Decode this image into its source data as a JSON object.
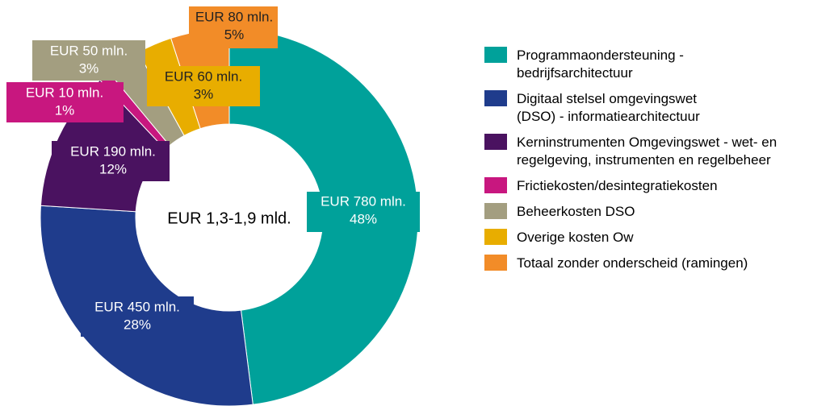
{
  "chart_data": {
    "type": "donut",
    "center_label": "EUR 1,3-1,9 mld.",
    "categories": [
      "Programmaondersteuning -\nbedrijfsarchitectuur",
      "Digitaal stelsel omgevingswet\n(DSO) - informatiearchitectuur",
      "Kerninstrumenten Omgevingswet - wet- en\nregelgeving, instrumenten en regelbeheer",
      "Frictiekosten/desintegratiekosten",
      "Beheerkosten DSO",
      "Overige kosten Ow",
      "Totaal zonder onderscheid (ramingen)"
    ],
    "values": [
      48,
      28,
      12,
      1,
      3,
      3,
      5
    ],
    "value_labels": [
      "48%",
      "28%",
      "12%",
      "1%",
      "3%",
      "3%",
      "5%"
    ],
    "amount_labels": [
      "EUR 780 mln.",
      "EUR 450 mln.",
      "EUR 190 mln.",
      "EUR 10 mln.",
      "EUR 50 mln.",
      "EUR 60 mln.",
      "EUR 80 mln."
    ],
    "colors": [
      "#00a19a",
      "#1f3c8c",
      "#4a1260",
      "#c8177f",
      "#a39e80",
      "#e8ad00",
      "#f28c28"
    ],
    "legend": "right"
  }
}
